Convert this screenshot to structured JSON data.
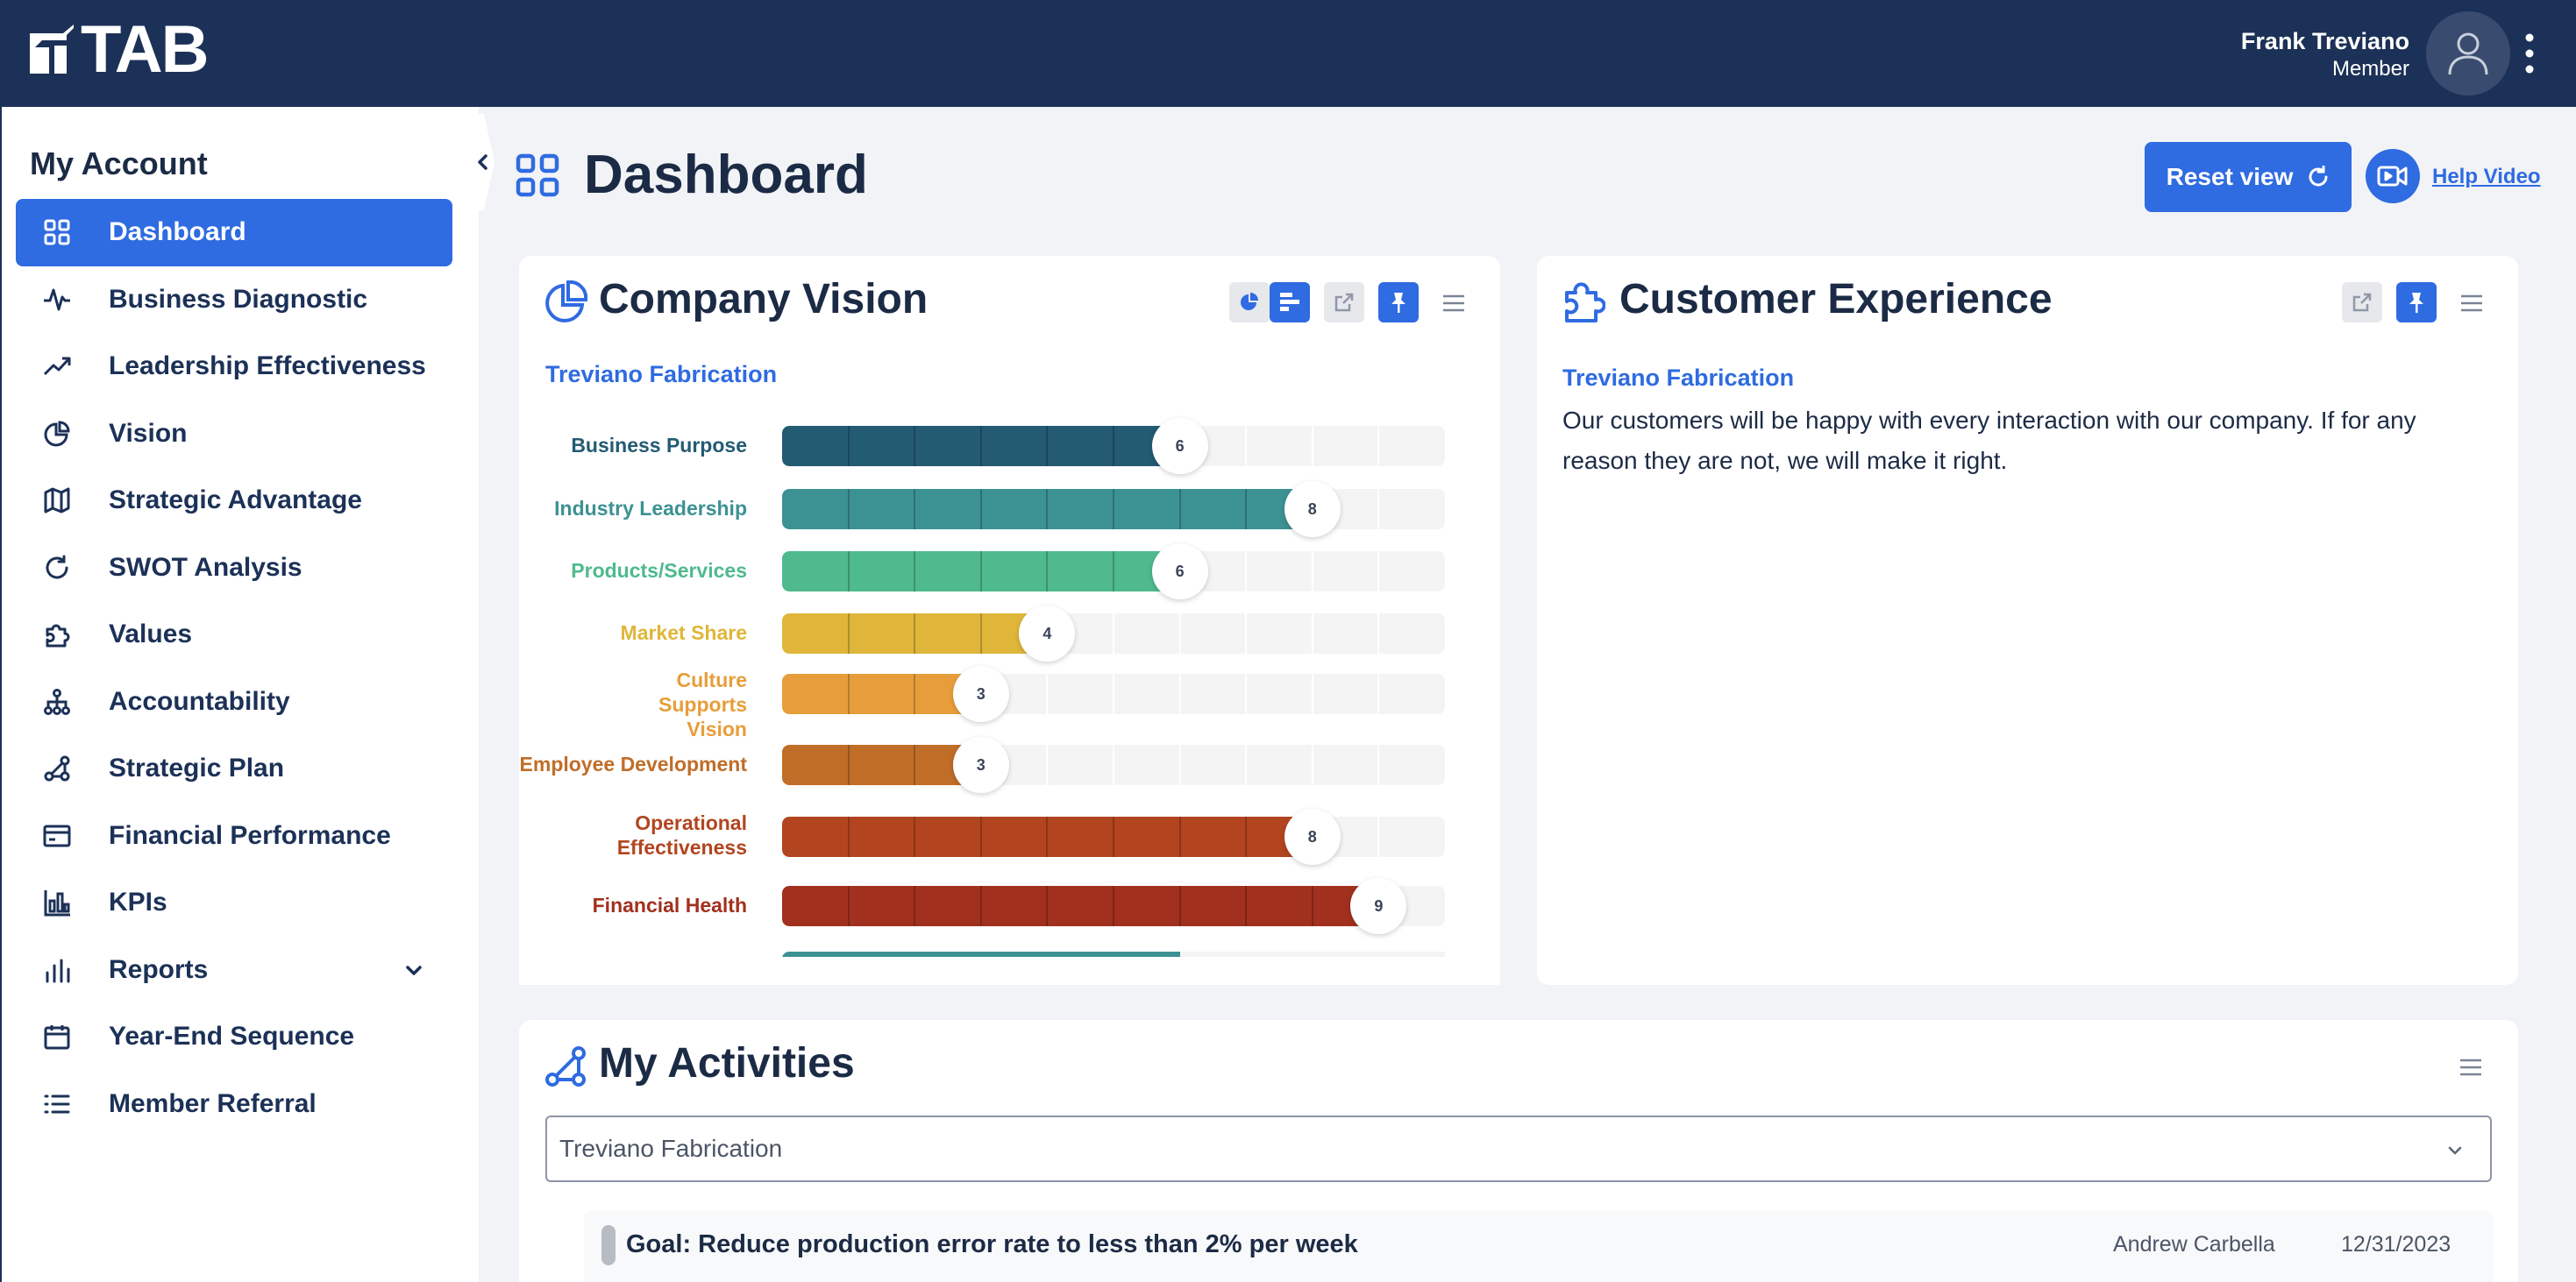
{
  "header": {
    "logo_text": "TAB",
    "user_name": "Frank Treviano",
    "user_role": "Member"
  },
  "sidebar": {
    "title": "My Account",
    "items": [
      {
        "label": "Dashboard",
        "icon": "grid-icon",
        "active": true
      },
      {
        "label": "Business Diagnostic",
        "icon": "pulse-icon"
      },
      {
        "label": "Leadership Effectiveness",
        "icon": "trend-up-icon"
      },
      {
        "label": "Vision",
        "icon": "pie-chart-icon"
      },
      {
        "label": "Strategic Advantage",
        "icon": "map-icon"
      },
      {
        "label": "SWOT Analysis",
        "icon": "refresh-icon"
      },
      {
        "label": "Values",
        "icon": "puzzle-icon"
      },
      {
        "label": "Accountability",
        "icon": "org-chart-icon"
      },
      {
        "label": "Strategic Plan",
        "icon": "route-icon"
      },
      {
        "label": "Financial Performance",
        "icon": "card-icon"
      },
      {
        "label": "KPIs",
        "icon": "bar-chart-icon"
      },
      {
        "label": "Reports",
        "icon": "reports-icon",
        "expandable": true
      },
      {
        "label": "Year-End Sequence",
        "icon": "calendar-icon"
      },
      {
        "label": "Member Referral",
        "icon": "list-icon"
      }
    ]
  },
  "main": {
    "title": "Dashboard",
    "reset_label": "Reset view",
    "help_label": "Help Video"
  },
  "company_vision": {
    "title": "Company Vision",
    "company": "Treviano Fabrication"
  },
  "chart_data": {
    "type": "bar",
    "orientation": "horizontal",
    "title": "Company Vision",
    "scale_max": 10,
    "categories": [
      "Business Purpose",
      "Industry Leadership",
      "Products/Services",
      "Market Share",
      "Culture Supports Vision",
      "Employee Development",
      "Operational Effectiveness",
      "Financial Health"
    ],
    "values": [
      6,
      8,
      6,
      4,
      3,
      3,
      8,
      9
    ],
    "colors": [
      "#235b73",
      "#3c9193",
      "#4fba8d",
      "#dfb639",
      "#e79e3a",
      "#c06d28",
      "#b2451f",
      "#a1301e"
    ]
  },
  "customer_experience": {
    "title": "Customer Experience",
    "company": "Treviano Fabrication",
    "text": "Our customers will be happy with every interaction with our company. If for any reason they are not, we will make it right."
  },
  "activities": {
    "title": "My Activities",
    "selected_company": "Treviano Fabrication",
    "rows": [
      {
        "title": "Goal: Reduce production error rate to less than 2% per week",
        "owner": "Andrew Carbella",
        "date": "12/31/2023"
      }
    ]
  }
}
